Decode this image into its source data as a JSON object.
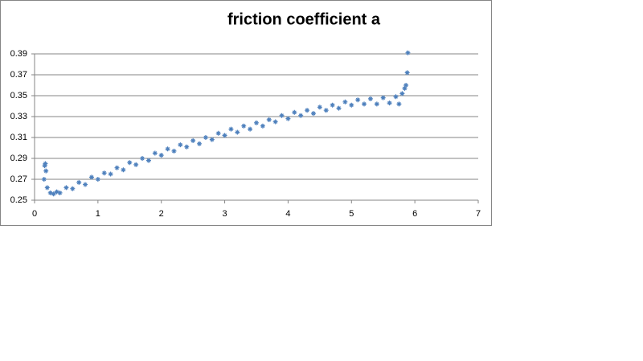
{
  "chart_data": {
    "type": "scatter",
    "title": "friction coefficient a",
    "color": "#4f81bd",
    "grid": true,
    "xlim": [
      0,
      7
    ],
    "xticks": [
      0,
      1,
      2,
      3,
      4,
      5,
      6,
      7
    ],
    "ylim": [
      0.25,
      0.39
    ],
    "yticks": [
      0.25,
      0.27,
      0.29,
      0.31,
      0.33,
      0.35,
      0.37,
      0.39
    ],
    "x": [
      0.15,
      0.16,
      0.17,
      0.18,
      0.2,
      0.25,
      0.3,
      0.35,
      0.4,
      0.5,
      0.6,
      0.7,
      0.8,
      0.9,
      1.0,
      1.1,
      1.2,
      1.3,
      1.4,
      1.5,
      1.6,
      1.7,
      1.8,
      1.9,
      2.0,
      2.1,
      2.2,
      2.3,
      2.4,
      2.5,
      2.6,
      2.7,
      2.8,
      2.9,
      3.0,
      3.1,
      3.2,
      3.3,
      3.4,
      3.5,
      3.6,
      3.7,
      3.8,
      3.9,
      4.0,
      4.1,
      4.2,
      4.3,
      4.4,
      4.5,
      4.6,
      4.7,
      4.8,
      4.9,
      5.0,
      5.1,
      5.2,
      5.3,
      5.4,
      5.5,
      5.6,
      5.7,
      5.75,
      5.8,
      5.84,
      5.86,
      5.88,
      5.89
    ],
    "values": [
      0.27,
      0.283,
      0.285,
      0.278,
      0.262,
      0.257,
      0.256,
      0.258,
      0.257,
      0.262,
      0.261,
      0.267,
      0.265,
      0.272,
      0.27,
      0.276,
      0.275,
      0.281,
      0.279,
      0.286,
      0.284,
      0.29,
      0.288,
      0.295,
      0.293,
      0.299,
      0.297,
      0.303,
      0.301,
      0.307,
      0.304,
      0.31,
      0.308,
      0.314,
      0.312,
      0.318,
      0.315,
      0.321,
      0.318,
      0.324,
      0.321,
      0.327,
      0.325,
      0.331,
      0.328,
      0.334,
      0.331,
      0.336,
      0.333,
      0.339,
      0.336,
      0.341,
      0.338,
      0.344,
      0.341,
      0.346,
      0.342,
      0.347,
      0.342,
      0.348,
      0.343,
      0.349,
      0.342,
      0.352,
      0.357,
      0.36,
      0.372,
      0.391
    ]
  }
}
